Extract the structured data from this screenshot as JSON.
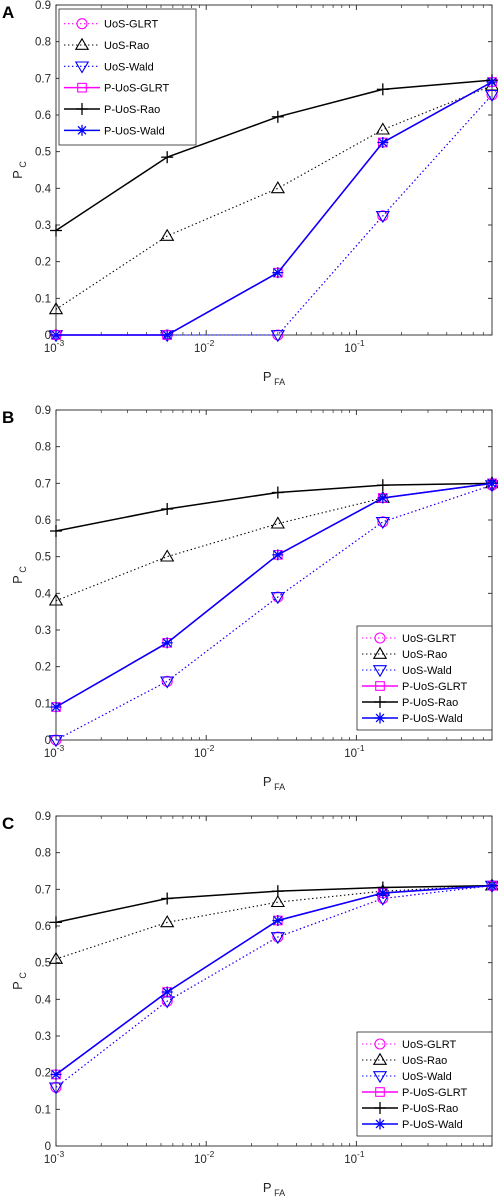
{
  "chart_data": [
    {
      "panel": "A",
      "type": "line",
      "xlabel": "P",
      "xlabel_sub": "FA",
      "ylabel": "P",
      "ylabel_sub": "C",
      "xscale": "log",
      "xlim": [
        0.001,
        0.8
      ],
      "ylim": [
        0,
        0.9
      ],
      "x_tick_labels": [
        "10",
        "10",
        "10"
      ],
      "x_tick_exponents": [
        "-3",
        "-2",
        "-1"
      ],
      "y_tick_labels": [
        "0",
        "0.1",
        "0.2",
        "0.3",
        "0.4",
        "0.5",
        "0.6",
        "0.7",
        "0.8",
        "0.9"
      ],
      "grid": false,
      "legend_position": "top-left",
      "x": [
        0.001,
        0.0055,
        0.03,
        0.15,
        0.8
      ],
      "series": [
        {
          "name": "UoS-GLRT",
          "values": [
            0,
            0,
            0,
            0.325,
            0.655
          ],
          "color": "#ff00ff",
          "dash": "dotted",
          "marker": "circle"
        },
        {
          "name": "UoS-Rao",
          "values": [
            0.07,
            0.27,
            0.4,
            0.56,
            0.68
          ],
          "color": "#000000",
          "dash": "dotted",
          "marker": "triangle-up"
        },
        {
          "name": "UoS-Wald",
          "values": [
            0,
            0,
            0,
            0.325,
            0.655
          ],
          "color": "#0000ff",
          "dash": "dotted",
          "marker": "triangle-down"
        },
        {
          "name": "P-UoS-GLRT",
          "values": [
            0,
            0,
            0.17,
            0.525,
            0.69
          ],
          "color": "#ff00ff",
          "dash": "solid",
          "marker": "square"
        },
        {
          "name": "P-UoS-Rao",
          "values": [
            0.285,
            0.485,
            0.595,
            0.67,
            0.695
          ],
          "color": "#000000",
          "dash": "solid",
          "marker": "plus"
        },
        {
          "name": "P-UoS-Wald",
          "values": [
            0,
            0,
            0.17,
            0.525,
            0.69
          ],
          "color": "#0000ff",
          "dash": "solid",
          "marker": "asterisk"
        }
      ]
    },
    {
      "panel": "B",
      "type": "line",
      "xlabel": "P",
      "xlabel_sub": "FA",
      "ylabel": "P",
      "ylabel_sub": "C",
      "xscale": "log",
      "xlim": [
        0.001,
        0.8
      ],
      "ylim": [
        0,
        0.9
      ],
      "x_tick_labels": [
        "10",
        "10",
        "10"
      ],
      "x_tick_exponents": [
        "-3",
        "-2",
        "-1"
      ],
      "y_tick_labels": [
        "0",
        "0.1",
        "0.2",
        "0.3",
        "0.4",
        "0.5",
        "0.6",
        "0.7",
        "0.8",
        "0.9"
      ],
      "grid": false,
      "legend_position": "bottom-right",
      "x": [
        0.001,
        0.0055,
        0.03,
        0.15,
        0.8
      ],
      "series": [
        {
          "name": "UoS-GLRT",
          "values": [
            0,
            0.16,
            0.39,
            0.595,
            0.695
          ],
          "color": "#ff00ff",
          "dash": "dotted",
          "marker": "circle"
        },
        {
          "name": "UoS-Rao",
          "values": [
            0.38,
            0.5,
            0.59,
            0.66,
            0.7
          ],
          "color": "#000000",
          "dash": "dotted",
          "marker": "triangle-up"
        },
        {
          "name": "UoS-Wald",
          "values": [
            0,
            0.16,
            0.39,
            0.595,
            0.695
          ],
          "color": "#0000ff",
          "dash": "dotted",
          "marker": "triangle-down"
        },
        {
          "name": "P-UoS-GLRT",
          "values": [
            0.09,
            0.265,
            0.505,
            0.66,
            0.7
          ],
          "color": "#ff00ff",
          "dash": "solid",
          "marker": "square"
        },
        {
          "name": "P-UoS-Rao",
          "values": [
            0.57,
            0.63,
            0.675,
            0.695,
            0.7
          ],
          "color": "#000000",
          "dash": "solid",
          "marker": "plus"
        },
        {
          "name": "P-UoS-Wald",
          "values": [
            0.09,
            0.265,
            0.505,
            0.66,
            0.7
          ],
          "color": "#0000ff",
          "dash": "solid",
          "marker": "asterisk"
        }
      ]
    },
    {
      "panel": "C",
      "type": "line",
      "xlabel": "P",
      "xlabel_sub": "FA",
      "ylabel": "P",
      "ylabel_sub": "C",
      "xscale": "log",
      "xlim": [
        0.001,
        0.8
      ],
      "ylim": [
        0,
        0.9
      ],
      "x_tick_labels": [
        "10",
        "10",
        "10"
      ],
      "x_tick_exponents": [
        "-3",
        "-2",
        "-1"
      ],
      "y_tick_labels": [
        "0",
        "0.1",
        "0.2",
        "0.3",
        "0.4",
        "0.5",
        "0.6",
        "0.7",
        "0.8",
        "0.9"
      ],
      "grid": false,
      "legend_position": "bottom-right",
      "x": [
        0.001,
        0.0055,
        0.03,
        0.15,
        0.8
      ],
      "series": [
        {
          "name": "UoS-GLRT",
          "values": [
            0.16,
            0.395,
            0.57,
            0.675,
            0.71
          ],
          "color": "#ff00ff",
          "dash": "dotted",
          "marker": "circle"
        },
        {
          "name": "UoS-Rao",
          "values": [
            0.51,
            0.61,
            0.665,
            0.695,
            0.71
          ],
          "color": "#000000",
          "dash": "dotted",
          "marker": "triangle-up"
        },
        {
          "name": "UoS-Wald",
          "values": [
            0.16,
            0.395,
            0.57,
            0.675,
            0.71
          ],
          "color": "#0000ff",
          "dash": "dotted",
          "marker": "triangle-down"
        },
        {
          "name": "P-UoS-GLRT",
          "values": [
            0.195,
            0.42,
            0.615,
            0.69,
            0.71
          ],
          "color": "#ff00ff",
          "dash": "solid",
          "marker": "square"
        },
        {
          "name": "P-UoS-Rao",
          "values": [
            0.61,
            0.675,
            0.695,
            0.705,
            0.71
          ],
          "color": "#000000",
          "dash": "solid",
          "marker": "plus"
        },
        {
          "name": "P-UoS-Wald",
          "values": [
            0.195,
            0.42,
            0.615,
            0.69,
            0.71
          ],
          "color": "#0000ff",
          "dash": "solid",
          "marker": "asterisk"
        }
      ]
    }
  ]
}
